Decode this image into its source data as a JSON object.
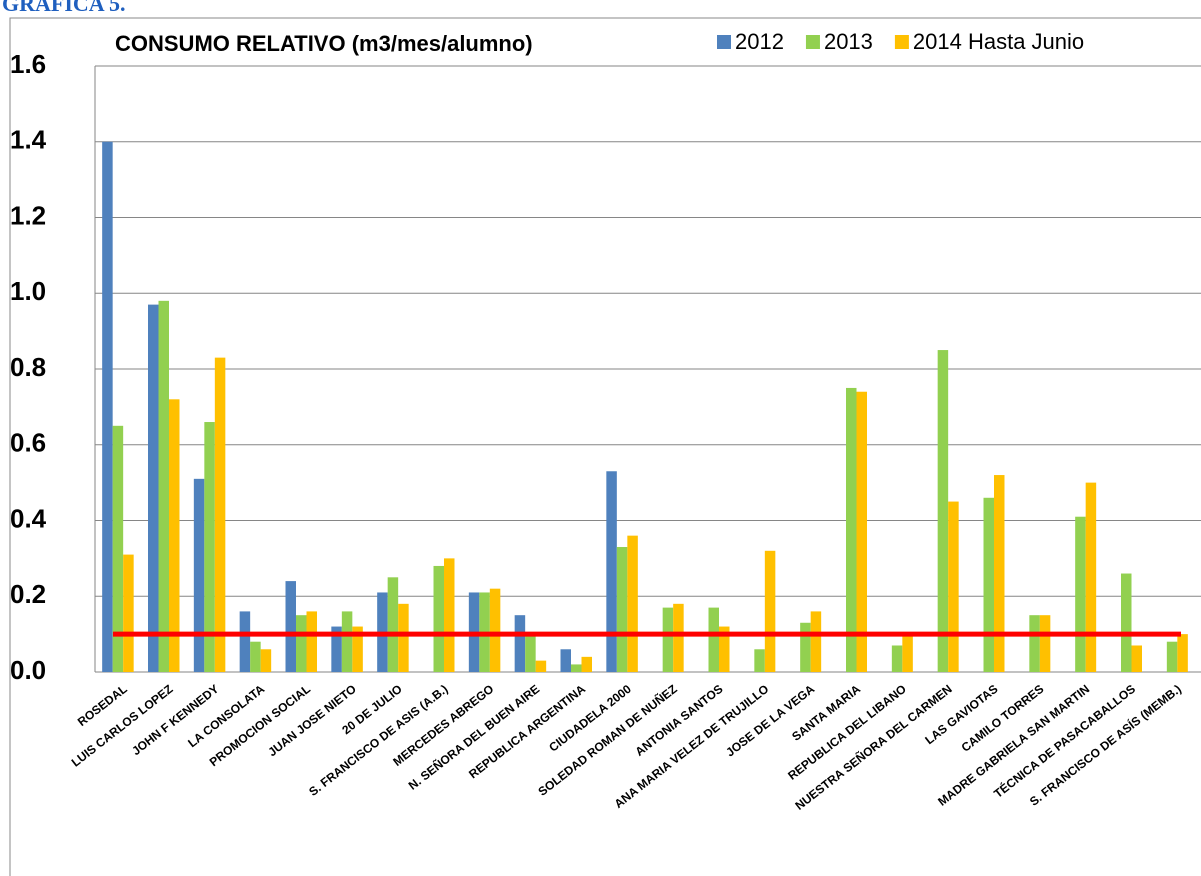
{
  "heading": "GRÁFICA 5.",
  "chart_data": {
    "type": "bar",
    "title": "CONSUMO RELATIVO (m3/mes/alumno)",
    "categories": [
      "ROSEDAL",
      "LUIS CARLOS LOPEZ",
      "JOHN F KENNEDY",
      "LA CONSOLATA",
      "PROMOCION SOCIAL",
      "JUAN JOSE NIETO",
      "20 DE JULIO",
      "S. FRANCISCO DE ASIS (A.B.)",
      "MERCEDES ABREGO",
      "N. SEÑORA DEL BUEN AIRE",
      "REPUBLICA ARGENTINA",
      "CIUDADELA 2000",
      "SOLEDAD ROMAN DE NUÑEZ",
      "ANTONIA SANTOS",
      "ANA MARIA VELEZ DE TRUJILLO",
      "JOSE DE LA VEGA",
      "SANTA MARIA",
      "REPUBLICA DEL LIBANO",
      "NUESTRA SEÑORA DEL  CARMEN",
      "LAS GAVIOTAS",
      "CAMILO TORRES",
      "MADRE GABRIELA SAN MARTIN",
      "TÉCNICA DE PASACABALLOS",
      "S. FRANCISCO DE ASÍS (MEMB.)"
    ],
    "series": [
      {
        "name": "2012",
        "color": "#4f81bd",
        "values": [
          1.4,
          0.97,
          0.51,
          0.16,
          0.24,
          0.12,
          0.21,
          null,
          0.21,
          0.15,
          0.06,
          0.53,
          null,
          null,
          null,
          null,
          null,
          null,
          null,
          null,
          null,
          null,
          null,
          null
        ]
      },
      {
        "name": "2013",
        "color": "#92d050",
        "values": [
          0.65,
          0.98,
          0.66,
          0.08,
          0.15,
          0.16,
          0.25,
          0.28,
          0.21,
          0.1,
          0.02,
          0.33,
          0.17,
          0.17,
          0.06,
          0.13,
          0.75,
          0.07,
          0.85,
          0.46,
          0.15,
          0.41,
          0.26,
          0.08
        ]
      },
      {
        "name": "2014 Hasta Junio",
        "color": "#ffc000",
        "values": [
          0.31,
          0.72,
          0.83,
          0.06,
          0.16,
          0.12,
          0.18,
          0.3,
          0.22,
          0.03,
          0.04,
          0.36,
          0.18,
          0.12,
          0.32,
          0.16,
          0.74,
          0.1,
          0.45,
          0.52,
          0.15,
          0.5,
          0.07,
          0.1
        ]
      }
    ],
    "reference_line": {
      "value": 0.1,
      "color": "#ff0000"
    },
    "ylim": [
      0,
      1.6
    ],
    "yticks": [
      {
        "value": 0,
        "label": "0.0"
      },
      0.2,
      0.4,
      0.6,
      0.8,
      {
        "value": 1,
        "label": "1.0"
      },
      1.2,
      1.4,
      1.6
    ],
    "grid": true
  }
}
